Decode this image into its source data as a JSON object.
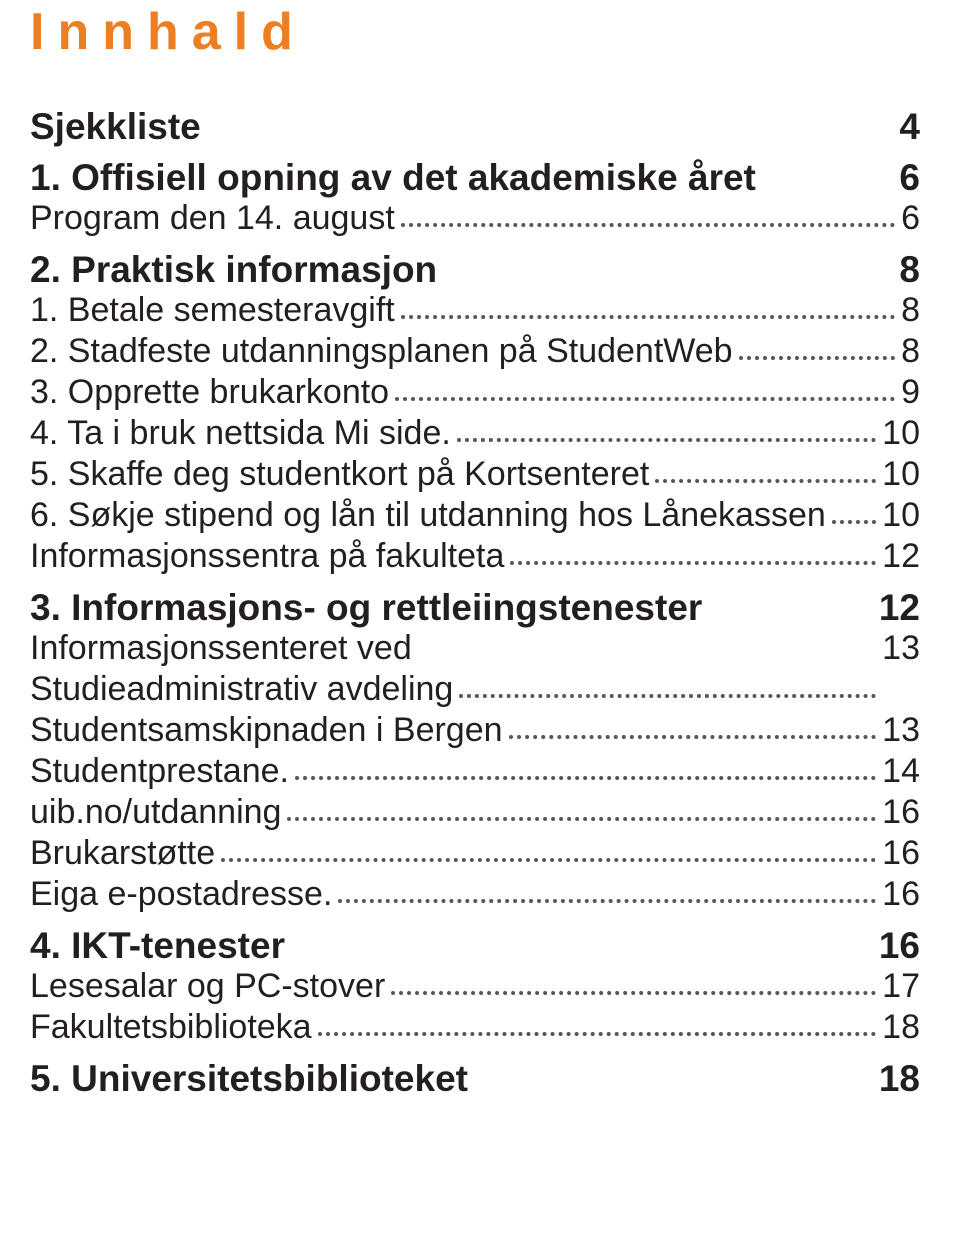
{
  "title": "Innhald",
  "title_color": "#ec7e23",
  "title_fontsize": 52,
  "section_fontsize": 37,
  "entry_fontsize": 34,
  "line_height": 41,
  "text_color": "#231f20",
  "leader_color": "#5a5653",
  "sections": [
    {
      "label": "Sjekkliste",
      "page": "4",
      "entries": []
    },
    {
      "label": "1. Offisiell opning av det akademiske året",
      "page": "6",
      "entries": [
        {
          "label": "Program den 14. august",
          "page": "6"
        }
      ]
    },
    {
      "label": "2. Praktisk informasjon",
      "page": "8",
      "entries": [
        {
          "label": "1. Betale semesteravgift",
          "page": "8"
        },
        {
          "label": "2. Stadfeste utdanningsplanen på StudentWeb",
          "page": "8"
        },
        {
          "label": "3. Opprette brukarkonto",
          "page": "9"
        },
        {
          "label": "4. Ta i bruk nettsida Mi side.",
          "page": "10"
        },
        {
          "label": "5. Skaffe deg studentkort på Kortsenteret",
          "page": "10"
        },
        {
          "label": "6. Søkje stipend og lån til utdanning hos Lånekassen",
          "page": "10"
        },
        {
          "label": "Informasjonssentra på fakulteta",
          "page": "12"
        }
      ]
    },
    {
      "label": "3. Informasjons- og rettleiingstenester",
      "page": "12",
      "entries": [
        {
          "label": "Informasjonssenteret ved\nStudieadministrativ avdeling",
          "page": "13"
        },
        {
          "label": "Studentsamskipnaden i Bergen",
          "page": "13"
        },
        {
          "label": "Studentprestane.",
          "page": "14"
        },
        {
          "label": "uib.no/utdanning",
          "page": "16"
        },
        {
          "label": "Brukarstøtte",
          "page": "16"
        },
        {
          "label": "Eiga e-postadresse.",
          "page": "16"
        }
      ]
    },
    {
      "label": "4. IKT-tenester",
      "page": "16",
      "entries": [
        {
          "label": "Lesesalar og PC-stover",
          "page": "17"
        },
        {
          "label": "Fakultetsbiblioteka",
          "page": "18"
        }
      ]
    },
    {
      "label": "5. Universitetsbiblioteket",
      "page": "18",
      "entries": []
    }
  ]
}
